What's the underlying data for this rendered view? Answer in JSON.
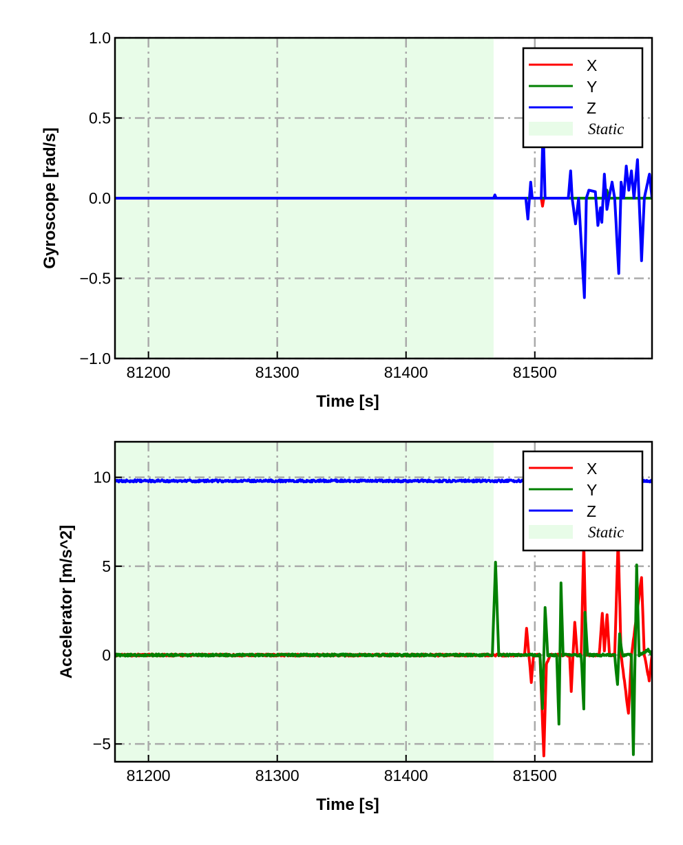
{
  "chart_data": [
    {
      "type": "line",
      "xlabel": "Time [s]",
      "ylabel": "Gyroscope [rad/s]",
      "xlim": [
        81174,
        81591
      ],
      "ylim": [
        -1.0,
        1.0
      ],
      "xticks": [
        81200,
        81300,
        81400,
        81500
      ],
      "xtick_labels": [
        "81200",
        "81300",
        "81400",
        "81500"
      ],
      "yticks": [
        -1.0,
        -0.5,
        0.0,
        0.5,
        1.0
      ],
      "ytick_labels": [
        "−1.0",
        "−0.5",
        "0.0",
        "0.5",
        "1.0"
      ],
      "grid": true,
      "legend": "top-right",
      "static_region": [
        81174,
        81468
      ],
      "series": [
        {
          "name": "X",
          "color": "#ff0000",
          "points": [
            [
              81174,
              0
            ],
            [
              81505,
              0
            ],
            [
              81506,
              -0.05
            ],
            [
              81507,
              0
            ],
            [
              81591,
              0
            ]
          ]
        },
        {
          "name": "Y",
          "color": "#008000",
          "points": [
            [
              81174,
              0
            ],
            [
              81555,
              0
            ],
            [
              81556,
              0.05
            ],
            [
              81557,
              0
            ],
            [
              81591,
              0
            ]
          ]
        },
        {
          "name": "Z",
          "color": "#0000ff",
          "points": [
            [
              81174,
              0
            ],
            [
              81468,
              0
            ],
            [
              81469,
              0.02
            ],
            [
              81470,
              0
            ],
            [
              81493,
              0
            ],
            [
              81494.6,
              -0.13
            ],
            [
              81496.8,
              0.1
            ],
            [
              81498,
              0
            ],
            [
              81505,
              0
            ],
            [
              81506.4,
              0.45
            ],
            [
              81508,
              0
            ],
            [
              81526,
              0
            ],
            [
              81527.8,
              0.17
            ],
            [
              81529,
              0
            ],
            [
              81531.6,
              -0.16
            ],
            [
              81534,
              0
            ],
            [
              81538.5,
              -0.62
            ],
            [
              81540,
              0
            ],
            [
              81542,
              0.05
            ],
            [
              81547,
              0.04
            ],
            [
              81549,
              -0.17
            ],
            [
              81551,
              -0.06
            ],
            [
              81552,
              -0.15
            ],
            [
              81554,
              0.15
            ],
            [
              81556,
              -0.07
            ],
            [
              81558,
              0.02
            ],
            [
              81560,
              0.1
            ],
            [
              81562,
              0
            ],
            [
              81565.2,
              -0.47
            ],
            [
              81567,
              0.1
            ],
            [
              81569,
              0
            ],
            [
              81571,
              0.2
            ],
            [
              81573,
              0.05
            ],
            [
              81575,
              0.17
            ],
            [
              81577,
              0
            ],
            [
              81579.7,
              0.24
            ],
            [
              81582.9,
              -0.39
            ],
            [
              81585,
              0
            ],
            [
              81589,
              0.15
            ],
            [
              81591,
              0
            ]
          ]
        }
      ]
    },
    {
      "type": "line",
      "xlabel": "Time [s]",
      "ylabel": "Accelerator [m/s^2]",
      "xlim": [
        81174,
        81591
      ],
      "ylim": [
        -6,
        12
      ],
      "xticks": [
        81200,
        81300,
        81400,
        81500
      ],
      "xtick_labels": [
        "81200",
        "81300",
        "81400",
        "81500"
      ],
      "yticks": [
        -5,
        0,
        5,
        10
      ],
      "ytick_labels": [
        "−5",
        "0",
        "5",
        "10"
      ],
      "grid": true,
      "legend": "top-right",
      "static_region": [
        81174,
        81468
      ],
      "series": [
        {
          "name": "X",
          "color": "#ff0000",
          "points": [
            [
              81174,
              0
            ],
            [
              81492,
              0
            ],
            [
              81493.6,
              1.5
            ],
            [
              81495,
              0.3
            ],
            [
              81497.3,
              -1.5
            ],
            [
              81499,
              0
            ],
            [
              81504,
              0
            ],
            [
              81507,
              -5.7
            ],
            [
              81509,
              -0.5
            ],
            [
              81512,
              0
            ],
            [
              81527,
              0
            ],
            [
              81528.3,
              -2.0
            ],
            [
              81531,
              1.9
            ],
            [
              81533,
              0
            ],
            [
              81536,
              0
            ],
            [
              81538,
              6.3
            ],
            [
              81540,
              0
            ],
            [
              81550,
              0
            ],
            [
              81552.4,
              2.4
            ],
            [
              81554,
              0.2
            ],
            [
              81556.1,
              2.3
            ],
            [
              81558,
              0
            ],
            [
              81562,
              0
            ],
            [
              81564.7,
              6.5
            ],
            [
              81567,
              0
            ],
            [
              81572.7,
              -3.3
            ],
            [
              81575,
              0
            ],
            [
              81582.9,
              4.4
            ],
            [
              81585,
              0
            ],
            [
              81588.8,
              -1.4
            ],
            [
              81591,
              0
            ]
          ]
        },
        {
          "name": "Y",
          "color": "#008000",
          "points": [
            [
              81174,
              0
            ],
            [
              81467,
              0
            ],
            [
              81469.5,
              5.2
            ],
            [
              81472,
              0
            ],
            [
              81504,
              0
            ],
            [
              81505.9,
              -3.0
            ],
            [
              81508,
              2.7
            ],
            [
              81510,
              0
            ],
            [
              81517,
              0
            ],
            [
              81518.7,
              -3.9
            ],
            [
              81520.3,
              4.05
            ],
            [
              81522,
              0
            ],
            [
              81536,
              0
            ],
            [
              81538,
              -3.0
            ],
            [
              81539,
              2.4
            ],
            [
              81541,
              0
            ],
            [
              81562,
              0
            ],
            [
              81564.2,
              -1.7
            ],
            [
              81565.8,
              1.2
            ],
            [
              81568,
              0
            ],
            [
              81575,
              0
            ],
            [
              81576.5,
              -5.6
            ],
            [
              81579.1,
              5.1
            ],
            [
              81581,
              0
            ],
            [
              81588,
              0.3
            ],
            [
              81591,
              0
            ]
          ]
        },
        {
          "name": "Z",
          "color": "#0000ff",
          "points": [
            [
              81174,
              9.8
            ],
            [
              81591,
              9.8
            ]
          ]
        }
      ]
    }
  ]
}
